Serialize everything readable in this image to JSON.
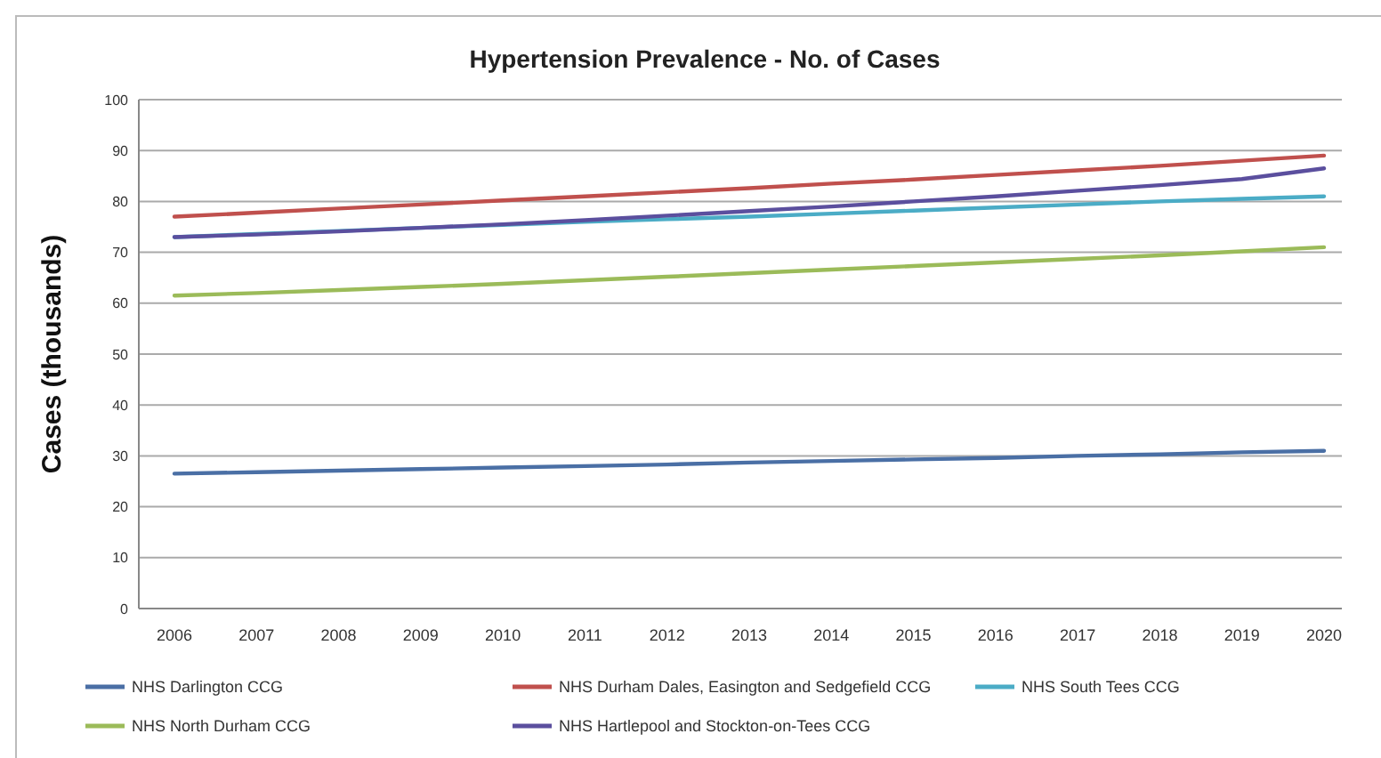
{
  "chart_data": {
    "type": "line",
    "title": "Hypertension Prevalence - No. of Cases",
    "ylabel": "Cases (thousands)",
    "categories": [
      "2006",
      "2007",
      "2008",
      "2009",
      "2010",
      "2011",
      "2012",
      "2013",
      "2014",
      "2015",
      "2016",
      "2017",
      "2018",
      "2019",
      "2020"
    ],
    "ylim": [
      0,
      100
    ],
    "yticks": [
      0,
      10,
      20,
      30,
      40,
      50,
      60,
      70,
      80,
      90,
      100
    ],
    "grid": "y",
    "legend": "bottom",
    "marker": "none",
    "line_style": "solid",
    "series": [
      {
        "name": "NHS Darlington CCG",
        "color": "#4a6fa5",
        "values": [
          26.5,
          26.8,
          27.1,
          27.4,
          27.7,
          28,
          28.3,
          28.7,
          29,
          29.3,
          29.6,
          30,
          30.3,
          30.7,
          31
        ]
      },
      {
        "name": "NHS Durham Dales, Easington and Sedgefield CCG",
        "color": "#c0504d",
        "values": [
          77,
          77.8,
          78.6,
          79.4,
          80.2,
          81,
          81.8,
          82.6,
          83.5,
          84.3,
          85.2,
          86.1,
          87,
          88,
          89
        ]
      },
      {
        "name": "NHS South Tees CCG",
        "color": "#4bacc6",
        "values": [
          73,
          73.6,
          74.2,
          74.8,
          75.4,
          76,
          76.5,
          77,
          77.6,
          78.2,
          78.8,
          79.4,
          80,
          80.5,
          81
        ]
      },
      {
        "name": "NHS North Durham CCG",
        "color": "#9bbb59",
        "values": [
          61.5,
          62,
          62.6,
          63.2,
          63.8,
          64.5,
          65.2,
          65.9,
          66.6,
          67.3,
          68,
          68.7,
          69.4,
          70.2,
          71
        ]
      },
      {
        "name": "NHS Hartlepool and Stockton-on-Tees CCG",
        "color": "#5b4f9e",
        "values": [
          73,
          73.5,
          74.1,
          74.8,
          75.5,
          76.3,
          77.2,
          78.1,
          79,
          80,
          81,
          82.1,
          83.2,
          84.4,
          86.5
        ]
      }
    ]
  }
}
